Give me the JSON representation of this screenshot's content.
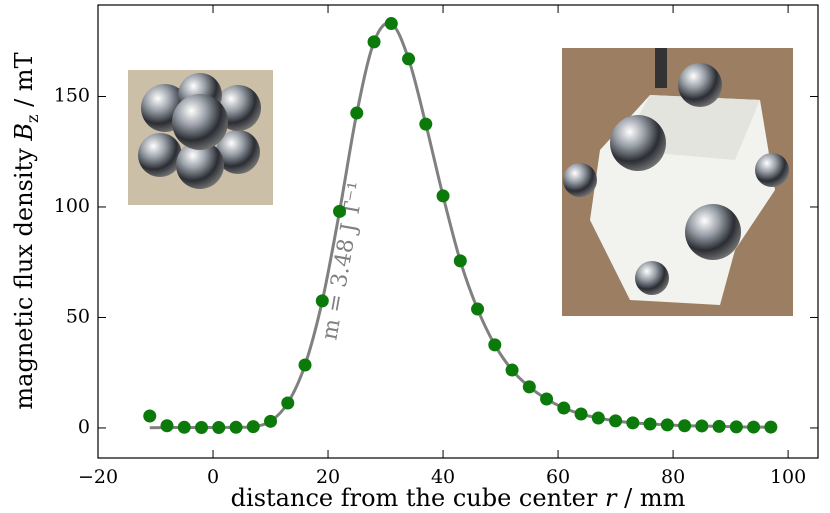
{
  "chart_data": {
    "type": "scatter",
    "xlabel": [
      "distance from the cube center ",
      "r",
      " / mm"
    ],
    "ylabel": [
      "magnetic flux density ",
      "B",
      "z",
      " / mT"
    ],
    "annotation": "m = 3.48 J T⁻¹",
    "xlim": [
      -20,
      105.2
    ],
    "ylim": [
      -13.6,
      191.4
    ],
    "xticks": [
      {
        "value": -20,
        "label": "−20"
      },
      0,
      20,
      40,
      60,
      80,
      100
    ],
    "yticks": [
      0,
      50,
      100,
      150
    ],
    "series": [
      {
        "kind": "line",
        "color": "#808080",
        "x": [
          -11,
          -8,
          -5,
          -2,
          1,
          4,
          7,
          10,
          13,
          16,
          19,
          22,
          25,
          28,
          31,
          34,
          37,
          40,
          43,
          46,
          49,
          52,
          55,
          58,
          61,
          64,
          67,
          70,
          73,
          76,
          79,
          82,
          85,
          88,
          91,
          94,
          97
        ],
        "values": [
          0.1,
          0.2,
          0.2,
          0.2,
          0.2,
          0.3,
          0.6,
          3,
          11.3,
          28.5,
          57.5,
          98,
          142.5,
          174.7,
          183,
          167,
          137.5,
          105,
          75.6,
          53.8,
          37.6,
          26.2,
          18.6,
          13.1,
          9,
          6.3,
          4.5,
          3.2,
          2.3,
          1.8,
          1.4,
          1,
          0.9,
          0.7,
          0.5,
          0.4,
          0.4
        ]
      },
      {
        "kind": "points",
        "color": "#0b7a0b",
        "x": [
          -11,
          -8,
          -5,
          -2,
          1,
          4,
          7,
          10,
          13,
          16,
          19,
          22,
          25,
          28,
          31,
          34,
          37,
          40,
          43,
          46,
          49,
          52,
          55,
          58,
          61,
          64,
          67,
          70,
          73,
          76,
          79,
          82,
          85,
          88,
          91,
          94,
          97
        ],
        "values": [
          5.4,
          1,
          0.3,
          0.2,
          0.2,
          0.3,
          0.6,
          3,
          11.3,
          28.5,
          57.5,
          98,
          142.5,
          174.7,
          183,
          167,
          137.5,
          105,
          75.6,
          53.8,
          37.6,
          26.2,
          18.6,
          13.1,
          9,
          6.3,
          4.5,
          3.2,
          2.3,
          1.8,
          1.4,
          1,
          0.9,
          0.7,
          0.5,
          0.4,
          0.4
        ]
      }
    ]
  }
}
